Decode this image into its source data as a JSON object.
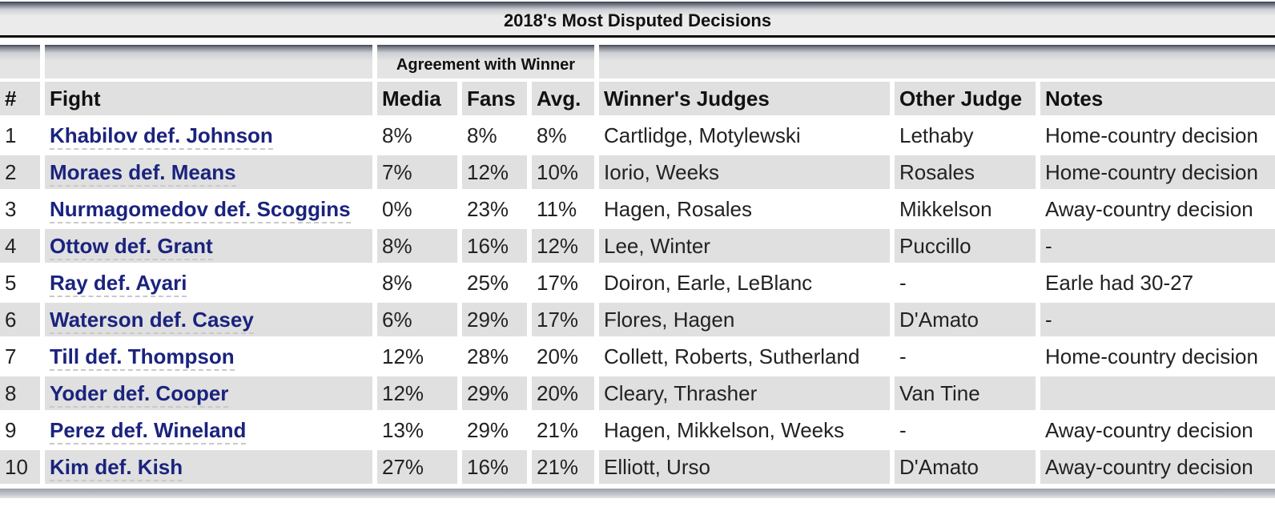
{
  "title": "2018's Most Disputed Decisions",
  "group_header": "Agreement with Winner",
  "columns": {
    "rank": "#",
    "fight": "Fight",
    "media": "Media",
    "fans": "Fans",
    "avg": "Avg.",
    "winners_judges": "Winner's Judges",
    "other_judge": "Other Judge",
    "notes": "Notes"
  },
  "rows": [
    {
      "rank": "1",
      "fight": "Khabilov def. Johnson",
      "media": "8%",
      "fans": "8%",
      "avg": "8%",
      "winners_judges": "Cartlidge, Motylewski",
      "other_judge": "Lethaby",
      "notes": "Home-country decision"
    },
    {
      "rank": "2",
      "fight": "Moraes def. Means",
      "media": "7%",
      "fans": "12%",
      "avg": "10%",
      "winners_judges": "Iorio, Weeks",
      "other_judge": "Rosales",
      "notes": "Home-country decision"
    },
    {
      "rank": "3",
      "fight": "Nurmagomedov def. Scoggins",
      "media": "0%",
      "fans": "23%",
      "avg": "11%",
      "winners_judges": "Hagen, Rosales",
      "other_judge": "Mikkelson",
      "notes": "Away-country decision"
    },
    {
      "rank": "4",
      "fight": "Ottow def. Grant",
      "media": "8%",
      "fans": "16%",
      "avg": "12%",
      "winners_judges": "Lee, Winter",
      "other_judge": "Puccillo",
      "notes": "-"
    },
    {
      "rank": "5",
      "fight": "Ray def. Ayari",
      "media": "8%",
      "fans": "25%",
      "avg": "17%",
      "winners_judges": "Doiron, Earle, LeBlanc",
      "other_judge": "-",
      "notes": "Earle had 30-27"
    },
    {
      "rank": "6",
      "fight": "Waterson def. Casey",
      "media": "6%",
      "fans": "29%",
      "avg": "17%",
      "winners_judges": "Flores, Hagen",
      "other_judge": "D'Amato",
      "notes": "-"
    },
    {
      "rank": "7",
      "fight": "Till def. Thompson",
      "media": "12%",
      "fans": "28%",
      "avg": "20%",
      "winners_judges": "Collett, Roberts, Sutherland",
      "other_judge": "-",
      "notes": "Home-country decision"
    },
    {
      "rank": "8",
      "fight": "Yoder def. Cooper",
      "media": "12%",
      "fans": "29%",
      "avg": "20%",
      "winners_judges": "Cleary, Thrasher",
      "other_judge": "Van Tine",
      "notes": ""
    },
    {
      "rank": "9",
      "fight": "Perez def. Wineland",
      "media": "13%",
      "fans": "29%",
      "avg": "21%",
      "winners_judges": "Hagen, Mikkelson, Weeks",
      "other_judge": "-",
      "notes": "Away-country decision"
    },
    {
      "rank": "10",
      "fight": "Kim def. Kish",
      "media": "27%",
      "fans": "16%",
      "avg": "21%",
      "winners_judges": "Elliott, Urso",
      "other_judge": "D'Amato",
      "notes": "Away-country decision"
    }
  ]
}
